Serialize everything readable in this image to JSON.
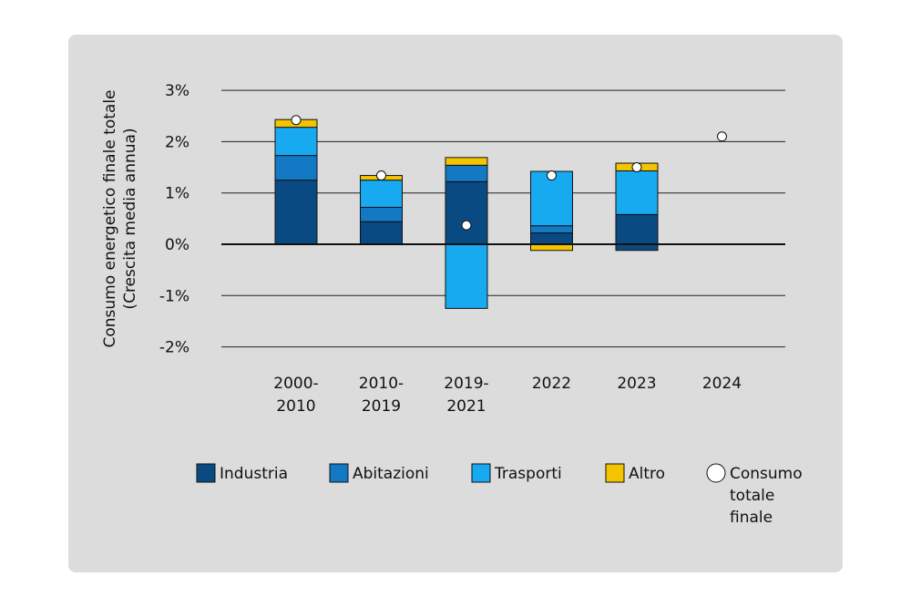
{
  "chart_data": {
    "type": "bar",
    "stacked": true,
    "title": "",
    "ylabel": [
      "Consumo energetico finale totale",
      "(Crescita media annua)"
    ],
    "xlabel": "",
    "ylim": [
      -2,
      3
    ],
    "yticks": [
      3,
      2,
      1,
      0,
      -1,
      -2
    ],
    "ytick_labels": [
      "3%",
      "2%",
      "1%",
      "0%",
      "-1%",
      "-2%"
    ],
    "grid": true,
    "categories": [
      [
        "2000-",
        "2010"
      ],
      [
        "2010-",
        "2019"
      ],
      [
        "2019-",
        "2021"
      ],
      [
        "2022"
      ],
      [
        "2023"
      ],
      [
        "2024"
      ]
    ],
    "series": [
      {
        "name": "Industria",
        "color": "#0a4a82",
        "values": [
          1.25,
          0.44,
          1.22,
          0.22,
          0.58,
          null
        ]
      },
      {
        "name": "Abitazioni",
        "color": "#1479c4",
        "values": [
          0.48,
          0.28,
          0.32,
          0.14,
          0.0,
          null
        ]
      },
      {
        "name": "Trasporti",
        "color": "#18aaf0",
        "values": [
          0.55,
          0.53,
          -1.25,
          1.06,
          0.85,
          null
        ]
      },
      {
        "name": "Altro",
        "color": "#f5c400",
        "values": [
          0.15,
          0.09,
          0.15,
          -0.12,
          0.15,
          null
        ]
      }
    ],
    "negative_adjustments": {
      "Industria": [
        0,
        0,
        0,
        0,
        -0.12,
        0
      ]
    },
    "total": {
      "name": "Consumo totale finale",
      "values": [
        2.42,
        1.34,
        0.37,
        1.34,
        1.5,
        2.1
      ]
    },
    "legend": {
      "position": "bottom",
      "entries": [
        {
          "label": "Industria",
          "color": "#0a4a82",
          "marker": "square"
        },
        {
          "label": "Abitazioni",
          "color": "#1479c4",
          "marker": "square"
        },
        {
          "label": "Trasporti",
          "color": "#18aaf0",
          "marker": "square"
        },
        {
          "label": "Altro",
          "color": "#f5c400",
          "marker": "square"
        },
        {
          "label": [
            "Consumo",
            "totale",
            "finale"
          ],
          "color": "#ffffff",
          "marker": "circle"
        }
      ]
    }
  }
}
